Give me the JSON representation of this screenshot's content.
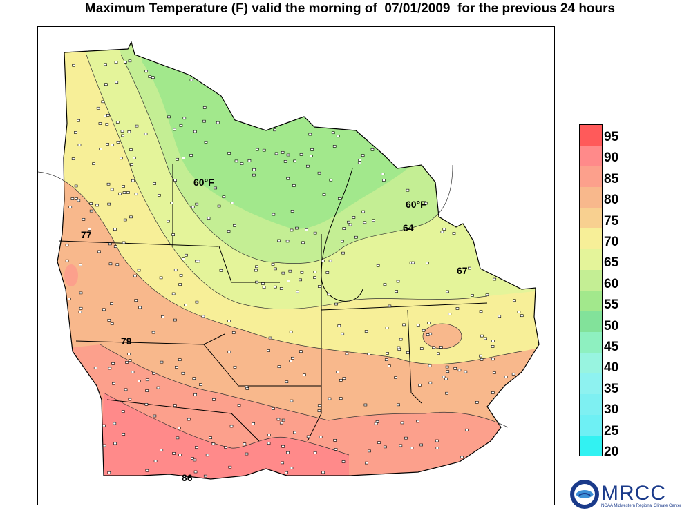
{
  "title": "Maximum Temperature (F) valid the morning of  07/01/2009  for the previous 24 hours",
  "map": {
    "contour_labels": [
      "60°F",
      "60°F",
      "64",
      "67",
      "77",
      "79",
      "86"
    ]
  },
  "legend": {
    "ticks": [
      "95",
      "90",
      "85",
      "80",
      "75",
      "70",
      "65",
      "60",
      "55",
      "50",
      "45",
      "40",
      "35",
      "30",
      "25",
      "20"
    ],
    "colors": [
      "#ff5a5a",
      "#ff8a8a",
      "#fca08c",
      "#f8b88c",
      "#f8d090",
      "#f7ef98",
      "#e4f49a",
      "#c4ee94",
      "#a2e88c",
      "#82e29a",
      "#8ef0c0",
      "#98f4e0",
      "#8ef2f0",
      "#7ef0f2",
      "#6ef0f4",
      "#32f2f2"
    ]
  },
  "logo": {
    "text": "MRCC",
    "subtitle": "NOAA Midwestern Regional Climate Center"
  }
}
